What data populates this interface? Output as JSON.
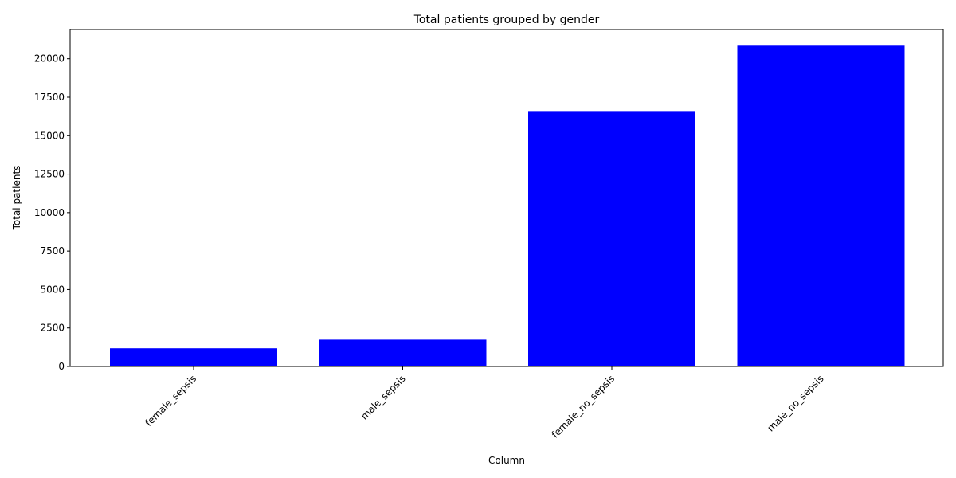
{
  "chart_data": {
    "type": "bar",
    "title": "Total patients grouped by gender",
    "xlabel": "Column",
    "ylabel": "Total patients",
    "categories": [
      "female_sepsis",
      "male_sepsis",
      "female_no_sepsis",
      "male_no_sepsis"
    ],
    "values": [
      1180,
      1740,
      16600,
      20850
    ],
    "ylim": [
      0,
      21900
    ],
    "yticks": [
      0,
      2500,
      5000,
      7500,
      10000,
      12500,
      15000,
      17500,
      20000
    ],
    "bar_color": "#0000ff",
    "grid": false,
    "legend": "none"
  }
}
